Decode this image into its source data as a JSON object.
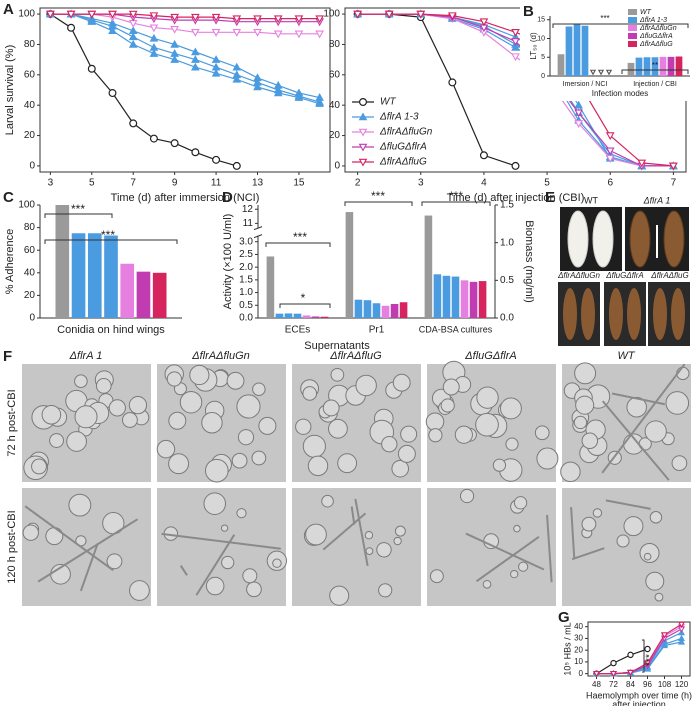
{
  "chart_data": [
    {
      "type": "line",
      "ylabel": "Larval survival (%)",
      "xlabel": "Time (d) after immersion (NCI)",
      "x": [
        3,
        4,
        5,
        6,
        7,
        8,
        9,
        10,
        11,
        12,
        13,
        14,
        15,
        16
      ],
      "xlim": [
        2.5,
        16.5
      ],
      "xticks": [
        3,
        5,
        7,
        9,
        11,
        13,
        15
      ],
      "ylim": [
        -4,
        104
      ],
      "yticks": [
        0,
        20,
        40,
        60,
        80,
        100
      ],
      "series": [
        {
          "color": "#222222",
          "marker": "circle",
          "values": [
            100,
            91,
            64,
            48,
            28,
            18,
            15,
            9,
            4,
            0,
            null,
            null,
            null,
            null
          ]
        },
        {
          "color": "#4a9be0",
          "marker": "tri-up",
          "values": [
            100,
            100,
            97,
            94,
            89,
            84,
            80,
            75,
            70,
            65,
            58,
            53,
            48,
            45
          ]
        },
        {
          "color": "#4a9be0",
          "marker": "tri-up",
          "values": [
            100,
            100,
            96,
            92,
            85,
            78,
            74,
            70,
            65,
            60,
            55,
            50,
            46,
            42
          ]
        },
        {
          "color": "#4a9be0",
          "marker": "tri-up",
          "values": [
            100,
            100,
            95,
            89,
            80,
            74,
            70,
            65,
            61,
            57,
            52,
            48,
            45,
            41
          ]
        },
        {
          "color": "#e680e0",
          "marker": "tri-down",
          "values": [
            100,
            100,
            100,
            98,
            94,
            91,
            90,
            88,
            88,
            88,
            88,
            87,
            87,
            87
          ]
        },
        {
          "color": "#c03cb0",
          "marker": "tri-down",
          "values": [
            100,
            100,
            100,
            100,
            98,
            97,
            96,
            96,
            96,
            95,
            95,
            95,
            95,
            95
          ]
        },
        {
          "color": "#d6245e",
          "marker": "tri-down",
          "values": [
            100,
            100,
            100,
            100,
            100,
            99,
            98,
            98,
            98,
            97,
            97,
            97,
            97,
            97
          ]
        }
      ]
    },
    {
      "type": "line",
      "xlabel": "Time (d) after injection (CBI)",
      "legend": "lower left",
      "x": [
        2,
        2.5,
        3,
        3.5,
        4,
        4.5,
        5,
        5.5,
        6,
        6.5,
        7
      ],
      "xlim": [
        1.8,
        7.2
      ],
      "xticks": [
        2,
        3,
        4,
        5,
        6,
        7
      ],
      "ylim": [
        -4,
        104
      ],
      "yticks": [
        0,
        20,
        40,
        60,
        80,
        100
      ],
      "series": [
        {
          "name": "WT",
          "color": "#222222",
          "marker": "circle",
          "values": [
            100,
            100,
            98,
            55,
            7,
            0,
            null,
            null,
            null,
            null,
            null
          ]
        },
        {
          "name": "ΔflrA 1-3",
          "color": "#4a9be0",
          "marker": "tri-up",
          "values": [
            100,
            100,
            100,
            98,
            93,
            85,
            72,
            40,
            5,
            0,
            0
          ]
        },
        {
          "color": "#4a9be0",
          "marker": "tri-up",
          "values": [
            100,
            100,
            100,
            98,
            92,
            80,
            68,
            35,
            8,
            0,
            0
          ]
        },
        {
          "color": "#4a9be0",
          "marker": "tri-up",
          "values": [
            100,
            100,
            100,
            97,
            90,
            78,
            65,
            30,
            6,
            0,
            0
          ]
        },
        {
          "name": "ΔflrAΔfluGn",
          "color": "#e680e0",
          "marker": "tri-down",
          "values": [
            100,
            100,
            100,
            97,
            88,
            72,
            57,
            28,
            5,
            0,
            0
          ]
        },
        {
          "name": "ΔfluGΔflrA",
          "color": "#c03cb0",
          "marker": "tri-down",
          "values": [
            100,
            100,
            100,
            98,
            91,
            82,
            62,
            35,
            10,
            0,
            0
          ]
        },
        {
          "name": "ΔflrAΔfluG",
          "color": "#d6245e",
          "marker": "tri-down",
          "values": [
            100,
            100,
            100,
            99,
            95,
            88,
            80,
            55,
            20,
            2,
            0
          ]
        }
      ]
    },
    {
      "type": "bar",
      "ylabel": "LT₅₀ (d)",
      "xlabel": "Infection modes",
      "legend": "upper right",
      "missing_marker": "triangle",
      "categories": [
        "Imersion / NCI",
        "Injection / CBI"
      ],
      "ylim": [
        0,
        16
      ],
      "yticks": [
        0,
        5,
        10,
        15
      ],
      "annotations": [
        "***",
        "**"
      ],
      "series": [
        {
          "name": "WT",
          "color": "#9a9a9a",
          "values": [
            5.8,
            3.5
          ]
        },
        {
          "name": "ΔflrA 1-3",
          "color": "#4a9be0",
          "values": [
            13.2,
            4.9
          ]
        },
        {
          "color": "#4a9be0",
          "values": [
            13.8,
            5.0
          ]
        },
        {
          "color": "#4a9be0",
          "values": [
            13.4,
            5.0
          ]
        },
        {
          "name": "ΔflrAΔfluGn",
          "color": "#e680e0",
          "values": [
            null,
            5.1
          ]
        },
        {
          "name": "ΔfluGΔflrA",
          "color": "#c03cb0",
          "values": [
            null,
            5.1
          ]
        },
        {
          "name": "ΔflrAΔfluG",
          "color": "#d6245e",
          "values": [
            null,
            5.2
          ]
        }
      ]
    },
    {
      "type": "bar",
      "ylabel": "% Adherence",
      "categories": [
        "Conidia on hind wings"
      ],
      "ylim": [
        0,
        100
      ],
      "yticks": [
        0,
        20,
        40,
        60,
        80,
        100
      ],
      "annotations": [
        "***",
        "***"
      ],
      "series": [
        {
          "color": "#9a9a9a",
          "values": [
            100
          ]
        },
        {
          "color": "#4a9be0",
          "values": [
            75
          ]
        },
        {
          "color": "#4a9be0",
          "values": [
            75
          ]
        },
        {
          "color": "#4a9be0",
          "values": [
            73
          ]
        },
        {
          "color": "#e680e0",
          "values": [
            48
          ]
        },
        {
          "color": "#c03cb0",
          "values": [
            41
          ]
        },
        {
          "color": "#d6245e",
          "values": [
            40
          ]
        }
      ]
    },
    {
      "type": "bar",
      "ylabel": "Activity (×100 U/ml)",
      "y2label": "Biomass (mg/ml)",
      "group_label": "Supernatants",
      "categories": [
        "ECEs",
        "Pr1",
        "CDA-BSA cultures"
      ],
      "ylim": [
        0,
        12.3
      ],
      "ybreak": [
        3.2,
        10.7
      ],
      "yticks": [
        {
          "value": 0,
          "label": "0.0"
        },
        0.5,
        {
          "value": 1,
          "label": "1.0"
        },
        1.5,
        {
          "value": 2,
          "label": "2.0"
        },
        2.5,
        {
          "value": 3,
          "label": "3.0"
        },
        11,
        12
      ],
      "y2lim": [
        0,
        1.5
      ],
      "y2ticks": [
        {
          "value": 0,
          "label": "0.0"
        },
        0.5,
        {
          "value": 1,
          "label": "1.0"
        },
        1.5
      ],
      "annotations": [
        "***",
        "*",
        "***",
        "***"
      ],
      "series": [
        {
          "color": "#9a9a9a",
          "values": [
            2.42,
            11.8,
            null
          ]
        },
        {
          "color": "#4a9be0",
          "values": [
            0.17,
            0.72,
            null
          ]
        },
        {
          "color": "#4a9be0",
          "values": [
            0.18,
            0.7,
            null
          ]
        },
        {
          "color": "#4a9be0",
          "values": [
            0.17,
            0.58,
            null
          ]
        },
        {
          "color": "#e680e0",
          "values": [
            0.1,
            0.48,
            null
          ]
        },
        {
          "color": "#c03cb0",
          "values": [
            0.06,
            0.55,
            null
          ]
        },
        {
          "color": "#d6245e",
          "values": [
            0.05,
            0.62,
            null
          ]
        },
        {
          "axis": "y2",
          "color": "#9a9a9a",
          "values": [
            null,
            null,
            1.36
          ]
        },
        {
          "axis": "y2",
          "color": "#4a9be0",
          "values": [
            null,
            null,
            0.58
          ]
        },
        {
          "axis": "y2",
          "color": "#4a9be0",
          "values": [
            null,
            null,
            0.56
          ]
        },
        {
          "axis": "y2",
          "color": "#4a9be0",
          "values": [
            null,
            null,
            0.55
          ]
        },
        {
          "axis": "y2",
          "color": "#e680e0",
          "values": [
            null,
            null,
            0.5
          ]
        },
        {
          "axis": "y2",
          "color": "#c03cb0",
          "values": [
            null,
            null,
            0.48
          ]
        },
        {
          "axis": "y2",
          "color": "#d6245e",
          "values": [
            null,
            null,
            0.49
          ]
        }
      ]
    },
    {
      "type": "line",
      "ylabel": "10⁵ HBs / mL",
      "xlabel": "Haemolymph over time (h)",
      "xlabel2": "after injection",
      "annotations": [
        "***"
      ],
      "categories": [
        "48",
        "72",
        "84",
        "96",
        "108",
        "120"
      ],
      "ylim": [
        -2,
        44
      ],
      "yticks": [
        0,
        10,
        20,
        30,
        40
      ],
      "series": [
        {
          "color": "#222222",
          "marker": "circle",
          "values": [
            0,
            9,
            16,
            21,
            null,
            null
          ]
        },
        {
          "color": "#4a9be0",
          "marker": "tri-up",
          "values": [
            0,
            0,
            0.5,
            5,
            25,
            30
          ]
        },
        {
          "color": "#4a9be0",
          "marker": "tri-up",
          "values": [
            0,
            0,
            1,
            6,
            28,
            35
          ]
        },
        {
          "color": "#4a9be0",
          "marker": "tri-up",
          "values": [
            0,
            0,
            0.5,
            4,
            24,
            27
          ]
        },
        {
          "color": "#e680e0",
          "marker": "tri-down",
          "values": [
            0,
            0,
            1,
            8,
            32,
            40
          ]
        },
        {
          "color": "#c03cb0",
          "marker": "tri-down",
          "values": [
            0,
            0,
            1,
            7,
            30,
            38
          ]
        },
        {
          "color": "#d6245e",
          "marker": "tri-down",
          "values": [
            0,
            0,
            1,
            9,
            33,
            42
          ]
        }
      ]
    }
  ],
  "panel_labels": [
    "A",
    "B",
    "C",
    "D",
    "E",
    "F",
    "G"
  ],
  "panel_e": {
    "labels": [
      "WT",
      "ΔflrA 1",
      "ΔflrAΔfluGn",
      "ΔfluGΔflrA",
      "ΔflrAΔfluG"
    ]
  },
  "panel_f": {
    "columns": [
      "ΔflrA 1",
      "ΔflrAΔfluGn",
      "ΔflrAΔfluG",
      "ΔfluGΔflrA",
      "WT"
    ],
    "rows": [
      "72 h post-CBI",
      "120 h post-CBI"
    ]
  }
}
